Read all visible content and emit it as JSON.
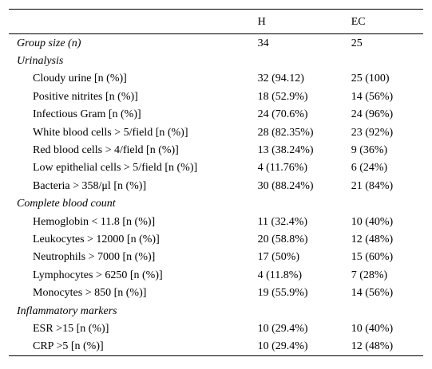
{
  "table": {
    "headers": [
      "",
      "H",
      "EC"
    ],
    "rows": [
      {
        "label": "Group size (n)",
        "h": "34",
        "ec": "25",
        "italic": true,
        "indent": false
      },
      {
        "label": "Urinalysis",
        "h": "",
        "ec": "",
        "italic": true,
        "indent": false
      },
      {
        "label": "Cloudy urine [n (%)]",
        "h": "32 (94.12)",
        "ec": "25 (100)",
        "italic": false,
        "indent": true
      },
      {
        "label": "Positive nitrites [n (%)]",
        "h": "18 (52.9%)",
        "ec": "14 (56%)",
        "italic": false,
        "indent": true
      },
      {
        "label": "Infectious Gram [n (%)]",
        "h": "24 (70.6%)",
        "ec": "24 (96%)",
        "italic": false,
        "indent": true
      },
      {
        "label": "White blood cells > 5/field [n (%)]",
        "h": "28 (82.35%)",
        "ec": "23 (92%)",
        "italic": false,
        "indent": true
      },
      {
        "label": "Red blood cells > 4/field [n (%)]",
        "h": "13 (38.24%)",
        "ec": "9 (36%)",
        "italic": false,
        "indent": true
      },
      {
        "label": "Low epithelial cells > 5/field [n (%)]",
        "h": "4 (11.76%)",
        "ec": "6 (24%)",
        "italic": false,
        "indent": true
      },
      {
        "label": "Bacteria > 358/μl [n (%)]",
        "h": "30 (88.24%)",
        "ec": "21 (84%)",
        "italic": false,
        "indent": true
      },
      {
        "label": "Complete blood count",
        "h": "",
        "ec": "",
        "italic": true,
        "indent": false
      },
      {
        "label": "Hemoglobin < 11.8 [n (%)]",
        "h": "11 (32.4%)",
        "ec": "10 (40%)",
        "italic": false,
        "indent": true
      },
      {
        "label": "Leukocytes > 12000 [n (%)]",
        "h": "20 (58.8%)",
        "ec": "12 (48%)",
        "italic": false,
        "indent": true
      },
      {
        "label": "Neutrophils > 7000 [n (%)]",
        "h": "17 (50%)",
        "ec": "15 (60%)",
        "italic": false,
        "indent": true
      },
      {
        "label": "Lymphocytes > 6250 [n (%)]",
        "h": "4 (11.8%)",
        "ec": "7 (28%)",
        "italic": false,
        "indent": true
      },
      {
        "label": "Monocytes > 850 [n (%)]",
        "h": "19 (55.9%)",
        "ec": "14 (56%)",
        "italic": false,
        "indent": true
      },
      {
        "label": "Inflammatory markers",
        "h": "",
        "ec": "",
        "italic": true,
        "indent": false
      },
      {
        "label": "ESR >15 [n (%)]",
        "h": "10 (29.4%)",
        "ec": "10 (40%)",
        "italic": false,
        "indent": true
      },
      {
        "label": "CRP >5 [n (%)]",
        "h": "10 (29.4%)",
        "ec": "12 (48%)",
        "italic": false,
        "indent": true
      }
    ]
  }
}
